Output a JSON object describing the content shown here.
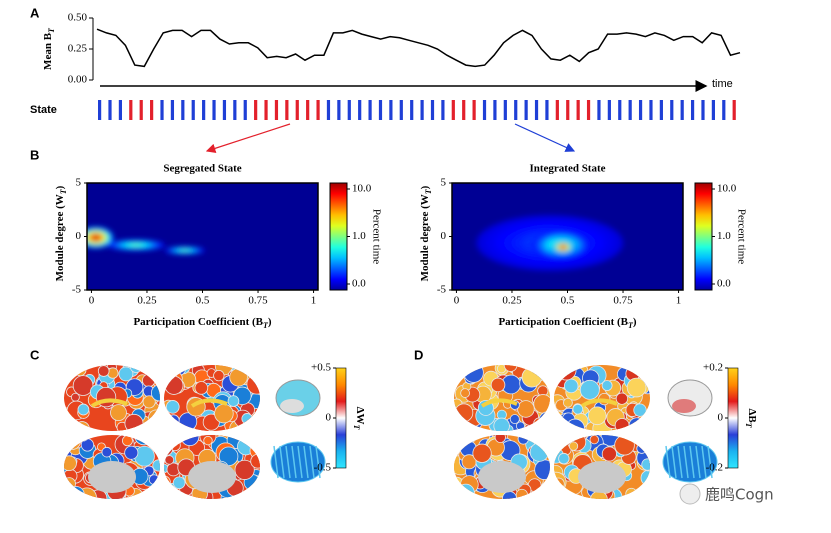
{
  "panel_labels": [
    "A",
    "B",
    "C",
    "D"
  ],
  "watermark": "鹿鸣Cogn",
  "chart_data": [
    {
      "type": "line",
      "ylabel": "Mean B",
      "ylabel_sub": "T",
      "xlabel": "time",
      "color": "#000000",
      "values": [
        0.41,
        0.38,
        0.36,
        0.28,
        0.12,
        0.11,
        0.25,
        0.38,
        0.4,
        0.4,
        0.35,
        0.4,
        0.4,
        0.33,
        0.29,
        0.3,
        0.3,
        0.26,
        0.18,
        0.19,
        0.18,
        0.21,
        0.16,
        0.2,
        0.2,
        0.38,
        0.38,
        0.4,
        0.37,
        0.35,
        0.33,
        0.35,
        0.34,
        0.32,
        0.3,
        0.28,
        0.25,
        0.2,
        0.16,
        0.12,
        0.11,
        0.12,
        0.2,
        0.3,
        0.36,
        0.4,
        0.36,
        0.25,
        0.17,
        0.16,
        0.2,
        0.15,
        0.22,
        0.25,
        0.37,
        0.37,
        0.38,
        0.37,
        0.35,
        0.38,
        0.36,
        0.32,
        0.35,
        0.35,
        0.3,
        0.38,
        0.36,
        0.2,
        0.22
      ],
      "ylim": [
        0,
        0.5
      ],
      "yticks": [
        {
          "value": 0,
          "label": "0.00"
        },
        {
          "value": 0.25,
          "label": "0.25"
        },
        {
          "value": 0.5,
          "label": "0.50"
        }
      ]
    },
    {
      "type": "strip",
      "label": "State",
      "colors": [
        "#1f3fd6",
        "#e3202b"
      ],
      "values": [
        0,
        0,
        0,
        1,
        1,
        1,
        0,
        0,
        0,
        0,
        0,
        0,
        0,
        0,
        0,
        1,
        1,
        1,
        1,
        1,
        1,
        1,
        0,
        0,
        0,
        0,
        0,
        0,
        0,
        0,
        0,
        0,
        0,
        0,
        1,
        1,
        1,
        0,
        0,
        0,
        0,
        0,
        0,
        0,
        1,
        1,
        1,
        1,
        0,
        0,
        0,
        0,
        0,
        0,
        0,
        0,
        0,
        0,
        0,
        0,
        0,
        1
      ]
    },
    {
      "type": "heatmap",
      "title": "Segregated State",
      "xlabel": "Participation Coefficient (B",
      "xlabel_sub": "T",
      "xlabel_end": ")",
      "ylabel": "Module degree (W",
      "ylabel_sub": "T",
      "ylabel_end": ")",
      "xlim": [
        -0.02,
        1.02
      ],
      "ylim": [
        -5,
        5
      ],
      "xticks": [
        0,
        0.25,
        0.5,
        0.75,
        1
      ],
      "yticks": [
        -5,
        0,
        5
      ],
      "clabel": "Percent time",
      "cticks": [
        {
          "value": 0,
          "label": "0.0"
        },
        {
          "value": 1,
          "label": "1.0"
        },
        {
          "value": 10,
          "label": "10.0"
        }
      ],
      "blobs": [
        {
          "x": 0.2,
          "y": -0.8,
          "sx": 0.13,
          "sy": 0.5,
          "value": 1
        },
        {
          "x": 0.42,
          "y": -1.3,
          "sx": 0.09,
          "sy": 0.35,
          "value": 1
        },
        {
          "x": 0.02,
          "y": -0.1,
          "sx": 0.08,
          "sy": 1.0,
          "value": 10
        }
      ]
    },
    {
      "type": "heatmap",
      "title": "Integrated State",
      "xlabel": "Participation Coefficient (B",
      "xlabel_sub": "T",
      "xlabel_end": ")",
      "ylabel": "Module degree (W",
      "ylabel_sub": "T",
      "ylabel_end": ")",
      "xlim": [
        -0.02,
        1.02
      ],
      "ylim": [
        -5,
        5
      ],
      "xticks": [
        0,
        0.25,
        0.5,
        0.75,
        1
      ],
      "yticks": [
        -5,
        0,
        5
      ],
      "clabel": "Percent time",
      "cticks": [
        {
          "value": 0,
          "label": "0.0"
        },
        {
          "value": 1,
          "label": "1.0"
        },
        {
          "value": 10,
          "label": "10.0"
        }
      ],
      "blobs": [
        {
          "x": 0.42,
          "y": -0.6,
          "sx": 0.33,
          "sy": 2.6,
          "value": 0.4
        },
        {
          "x": 0.47,
          "y": -0.8,
          "sx": 0.13,
          "sy": 1.3,
          "value": 1
        },
        {
          "x": 0.48,
          "y": -1.0,
          "sx": 0.05,
          "sy": 0.6,
          "value": 10
        }
      ]
    },
    {
      "type": "brain",
      "clabel": "ΔW",
      "clabel_sub": "T",
      "clim": [
        -0.5,
        0.5
      ],
      "cticks": [
        {
          "value": 0.5,
          "label": "+0.5"
        },
        0,
        -0.5
      ],
      "palette": [
        "#e8451e",
        "#ff6a1a",
        "#2b4fd8",
        "#5ec8ef",
        "#f29a2e",
        "#1a7fd8",
        "#d63a2a"
      ]
    },
    {
      "type": "brain",
      "clabel": "ΔB",
      "clabel_sub": "T",
      "clim": [
        -0.2,
        0.2
      ],
      "cticks": [
        {
          "value": 0.2,
          "label": "+0.2"
        },
        0,
        -0.2
      ],
      "palette": [
        "#f28c28",
        "#f6b33a",
        "#e8561e",
        "#fbd35a",
        "#d8341f",
        "#5ec8ef",
        "#2a5bd8"
      ]
    }
  ]
}
